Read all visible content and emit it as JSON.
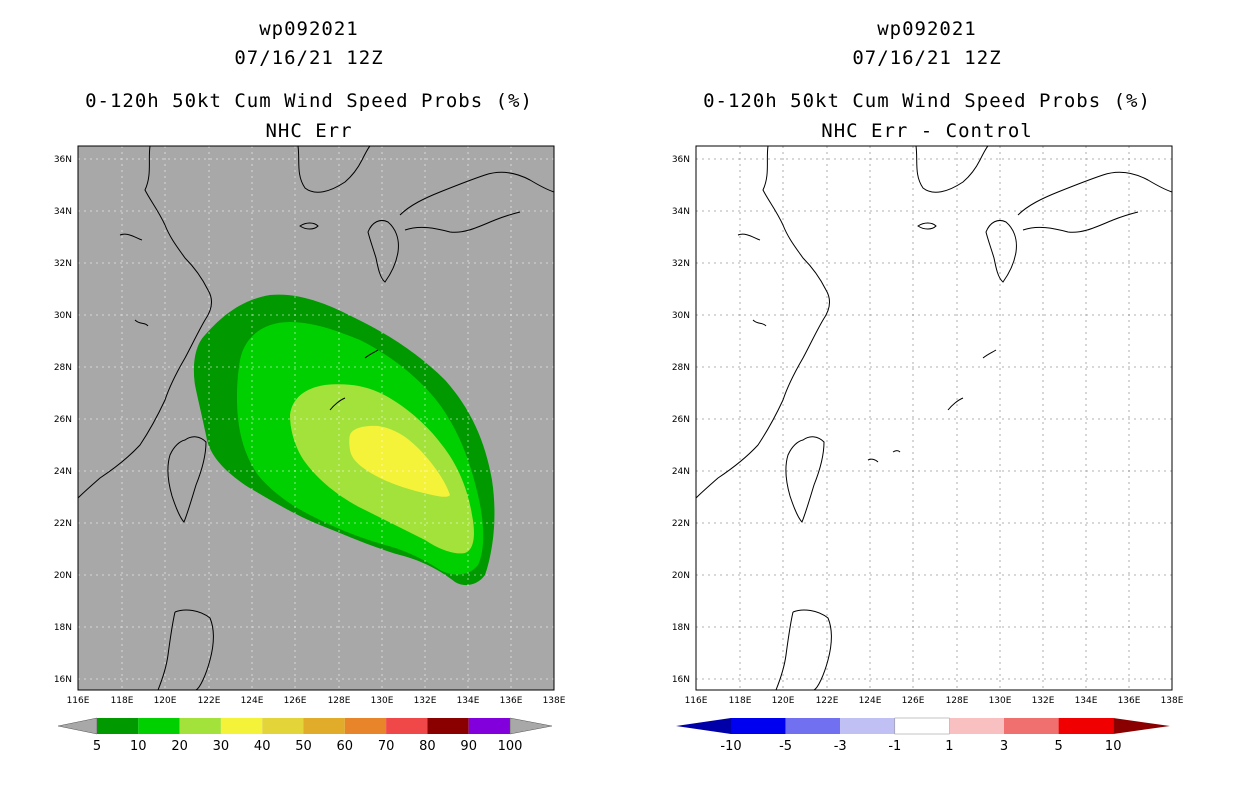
{
  "left": {
    "storm_id": "wp092021",
    "datetime": "07/16/21 12Z",
    "product": "0-120h 50kt Cum Wind Speed Probs (%)",
    "subtitle": "NHC Err",
    "lat_labels": [
      "36N",
      "34N",
      "32N",
      "30N",
      "28N",
      "26N",
      "24N",
      "22N",
      "20N",
      "18N",
      "16N"
    ],
    "lon_labels": [
      "116E",
      "118E",
      "120E",
      "122E",
      "124E",
      "126E",
      "128E",
      "130E",
      "132E",
      "134E",
      "136E",
      "138E"
    ],
    "colorbar": {
      "labels": [
        "5",
        "10",
        "20",
        "30",
        "40",
        "50",
        "60",
        "70",
        "80",
        "90",
        "100"
      ],
      "colors": [
        "#009900",
        "#00d000",
        "#a3e23a",
        "#f5f23a",
        "#e3d43a",
        "#e0ac2a",
        "#e8842a",
        "#f04848",
        "#8a0000",
        "#8200dc"
      ],
      "end_color": "#a8a8a8"
    },
    "background_color": "#a8a8a8"
  },
  "right": {
    "storm_id": "wp092021",
    "datetime": "07/16/21 12Z",
    "product": "0-120h 50kt Cum Wind Speed Probs (%)",
    "subtitle": "NHC Err - Control",
    "lat_labels": [
      "36N",
      "34N",
      "32N",
      "30N",
      "28N",
      "26N",
      "24N",
      "22N",
      "20N",
      "18N",
      "16N"
    ],
    "lon_labels": [
      "116E",
      "118E",
      "120E",
      "122E",
      "124E",
      "126E",
      "128E",
      "130E",
      "132E",
      "134E",
      "136E",
      "138E"
    ],
    "colorbar": {
      "labels": [
        "-10",
        "-5",
        "-3",
        "-1",
        "1",
        "3",
        "5",
        "10"
      ],
      "colors": [
        "#0000a8",
        "#0000f0",
        "#7070f0",
        "#c0c0f4",
        "#ffffff",
        "#f8c0c0",
        "#f07070",
        "#f00000",
        "#8a0000"
      ]
    },
    "background_color": "#ffffff"
  }
}
